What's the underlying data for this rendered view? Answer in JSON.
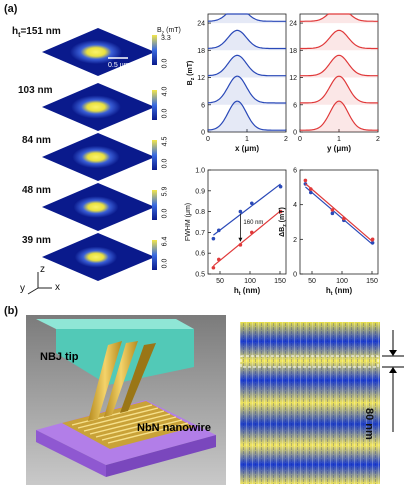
{
  "panel_a": {
    "label": "(a)",
    "maps": [
      {
        "height": "h",
        "height_sub": "t",
        "height_rest": "=151 nm",
        "bmax": "3.3",
        "bmin": "0.0"
      },
      {
        "height": "103 nm",
        "bmax": "4.0",
        "bmin": "0.0"
      },
      {
        "height": "84 nm",
        "bmax": "4.5",
        "bmin": "0.0"
      },
      {
        "height": "48 nm",
        "bmax": "5.9",
        "bmin": "0.0"
      },
      {
        "height": "39 nm",
        "bmax": "6.4",
        "bmin": "0.0"
      }
    ],
    "colorbar_title": "B",
    "colorbar_title_sub": "z",
    "colorbar_title_unit": " (mT)",
    "scalebar": "0.5 μm",
    "axes": {
      "x": "x",
      "y": "y",
      "z": "z"
    }
  },
  "colors": {
    "blue": "#2a49b8",
    "red": "#e0393a",
    "map_dark": "#0a1a8c",
    "map_hot": "#f2e64a"
  },
  "chart_data": [
    {
      "type": "line",
      "ylabel_main": "B",
      "ylabel_sub": "z",
      "ylabel_unit": " (mT)",
      "xlabel": "x (μm)",
      "xlim": [
        0,
        2
      ],
      "ylim": [
        0,
        26
      ],
      "xticks": [
        "0",
        "1",
        "2"
      ],
      "yticks": [
        "0",
        "6",
        "12",
        "18",
        "24"
      ],
      "color": "#2a49b8",
      "offsets": [
        0,
        6,
        12,
        18,
        24
      ],
      "amplitudes": [
        6.4,
        5.9,
        4.5,
        4.0,
        3.3
      ],
      "center": 0.75
    },
    {
      "type": "line",
      "xlabel": "y (μm)",
      "xlim": [
        0,
        2
      ],
      "ylim": [
        0,
        26
      ],
      "xticks": [
        "0",
        "1",
        "2"
      ],
      "yticks": [
        "0",
        "6",
        "12",
        "18",
        "24"
      ],
      "color": "#e0393a",
      "offsets": [
        0,
        6,
        12,
        18,
        24
      ],
      "amplitudes": [
        6.4,
        5.9,
        4.5,
        4.0,
        3.3
      ],
      "center": 1.0
    },
    {
      "type": "scatter",
      "ylabel": "FWHM (μm)",
      "xlabel_main": "h",
      "xlabel_sub": "t",
      "xlabel_unit": " (nm)",
      "xlim": [
        30,
        160
      ],
      "ylim": [
        0.5,
        1.0
      ],
      "xticks": [
        "50",
        "100",
        "150"
      ],
      "yticks": [
        "0.5",
        "0.6",
        "0.7",
        "0.8",
        "0.9",
        "1.0"
      ],
      "annotation": "160 nm",
      "series": [
        {
          "color": "#2a49b8",
          "x": [
            39,
            48,
            84,
            103,
            151
          ],
          "y": [
            0.67,
            0.71,
            0.8,
            0.84,
            0.92
          ]
        },
        {
          "color": "#e0393a",
          "x": [
            39,
            48,
            84,
            103,
            151
          ],
          "y": [
            0.53,
            0.57,
            0.64,
            0.7,
            0.8
          ]
        }
      ]
    },
    {
      "type": "scatter",
      "ylabel_main": "ΔB",
      "ylabel_sub": "z",
      "ylabel_unit": " (mT)",
      "xlabel_main": "h",
      "xlabel_sub": "t",
      "xlabel_unit": " (nm)",
      "xlim": [
        30,
        160
      ],
      "ylim": [
        0,
        6
      ],
      "xticks": [
        "50",
        "100",
        "150"
      ],
      "yticks": [
        "0",
        "2",
        "4",
        "6"
      ],
      "series": [
        {
          "color": "#2a49b8",
          "x": [
            39,
            48,
            84,
            103,
            151
          ],
          "y": [
            5.2,
            4.7,
            3.5,
            3.1,
            1.8
          ]
        },
        {
          "color": "#e0393a",
          "x": [
            39,
            48,
            84,
            103,
            151
          ],
          "y": [
            5.4,
            4.9,
            3.7,
            3.2,
            2.0
          ]
        }
      ]
    }
  ],
  "panel_b": {
    "label": "(b)",
    "tip_label": "NBJ tip",
    "wire_label": "NbN nanowire",
    "period_label": "80 nm"
  }
}
